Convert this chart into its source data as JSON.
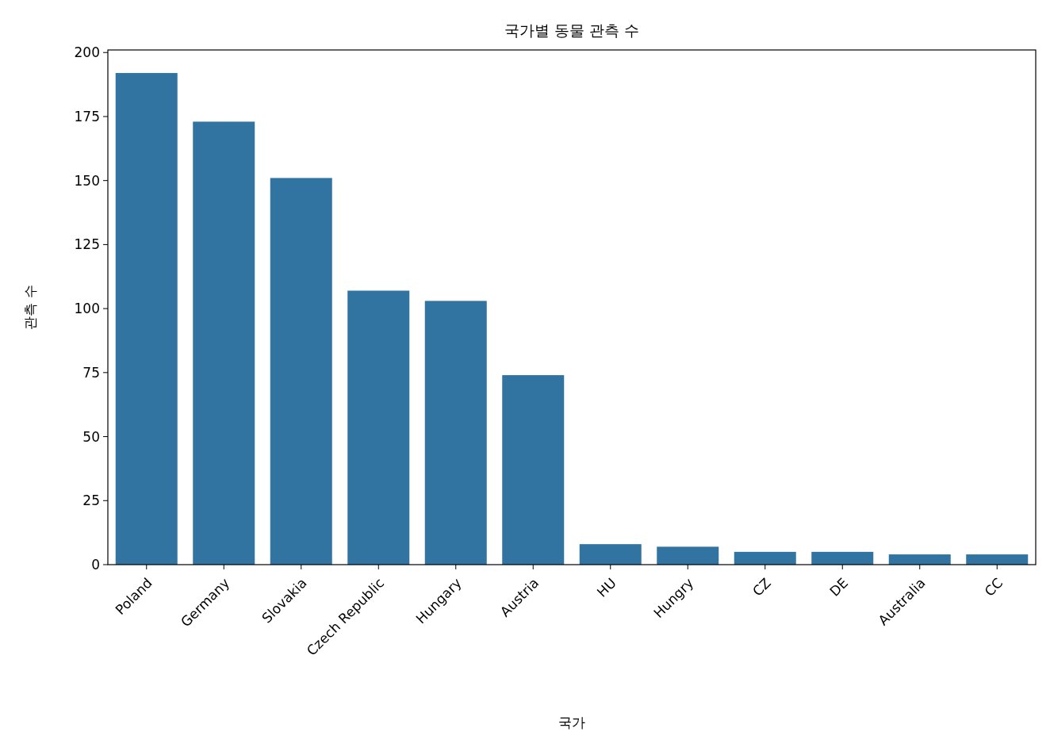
{
  "chart_data": {
    "type": "bar",
    "title": "국가별 동물 관측 수",
    "xlabel": "국가",
    "ylabel": "관측 수",
    "categories": [
      "Poland",
      "Germany",
      "Slovakia",
      "Czech Republic",
      "Hungary",
      "Austria",
      "HU",
      "Hungry",
      "CZ",
      "DE",
      "Australia",
      "CC"
    ],
    "values": [
      192,
      173,
      151,
      107,
      103,
      74,
      8,
      7,
      5,
      5,
      4,
      4
    ],
    "color": "#3274a1",
    "ylim": [
      0,
      201
    ],
    "yticks": [
      0,
      25,
      50,
      75,
      100,
      125,
      150,
      175,
      200
    ],
    "grid": false
  }
}
